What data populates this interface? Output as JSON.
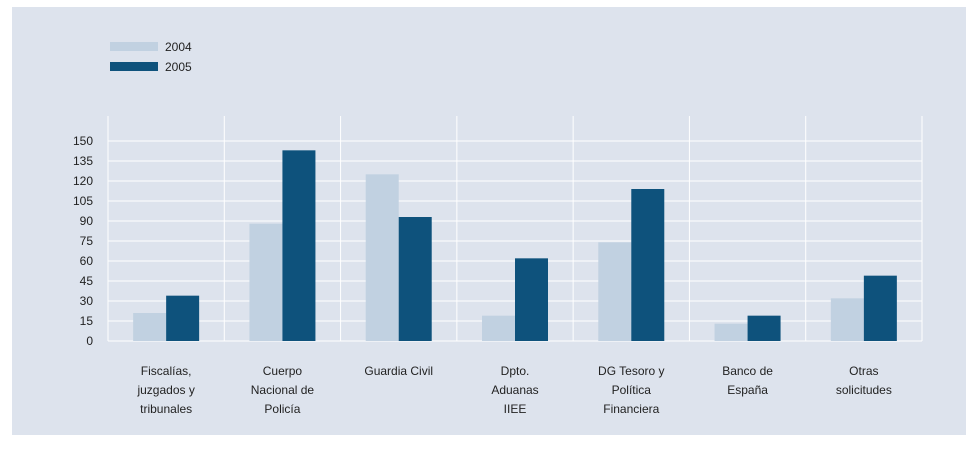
{
  "chart_data": {
    "type": "bar",
    "title": "",
    "xlabel": "",
    "ylabel": "",
    "ylim": [
      0,
      150
    ],
    "yticks": [
      0,
      15,
      30,
      45,
      60,
      75,
      90,
      105,
      120,
      135,
      150
    ],
    "grid": true,
    "legend_position": "top-left",
    "categories": [
      [
        "Fiscalías,",
        "juzgados y",
        "tribunales"
      ],
      [
        "Cuerpo",
        "Nacional de",
        "Policía"
      ],
      [
        "Guardia Civil"
      ],
      [
        "Dpto.",
        "Aduanas",
        "IIEE"
      ],
      [
        "DG Tesoro y",
        "Política",
        "Financiera"
      ],
      [
        "Banco de",
        "España"
      ],
      [
        "Otras",
        "solicitudes"
      ]
    ],
    "series": [
      {
        "name": "2004",
        "color": "#c1d1e1",
        "values": [
          21,
          88,
          125,
          19,
          74,
          13,
          32
        ]
      },
      {
        "name": "2005",
        "color": "#0e527c",
        "values": [
          34,
          143,
          93,
          62,
          114,
          19,
          49
        ]
      }
    ]
  }
}
